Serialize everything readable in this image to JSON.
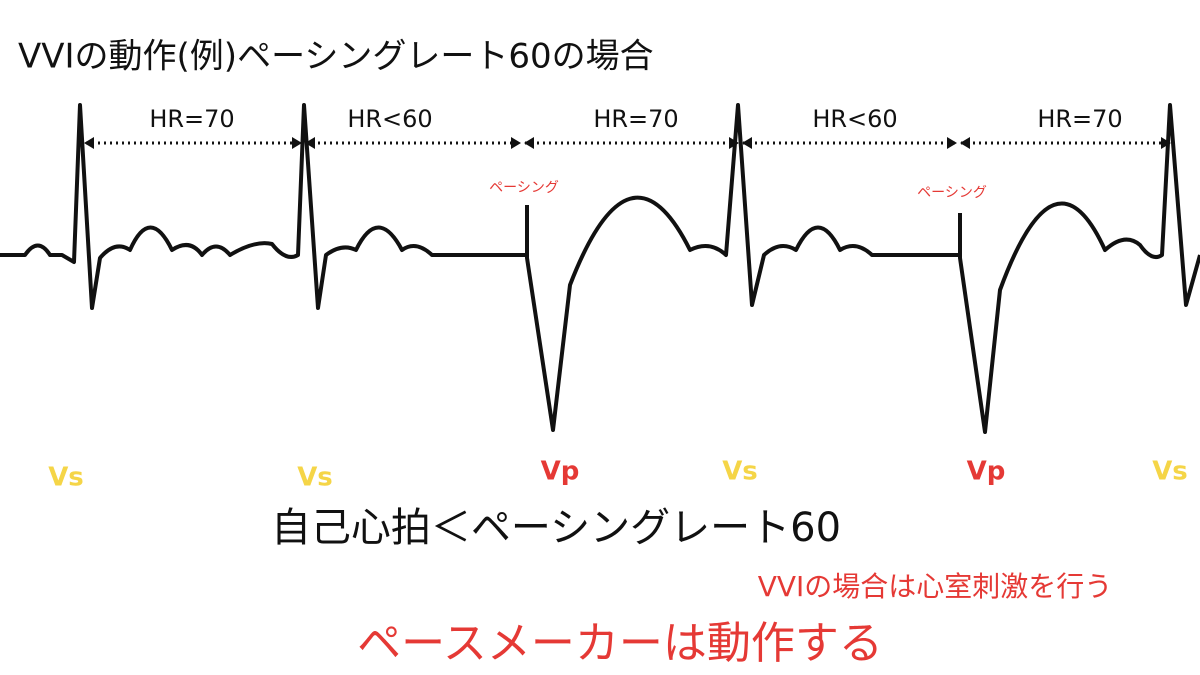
{
  "title": "VVIの動作(例)ペーシングレート60の場合",
  "intervals": [
    "HR=70",
    "HR<60",
    "HR=70",
    "HR<60",
    "HR=70"
  ],
  "pacing_labels": [
    "ペーシング",
    "ペーシング"
  ],
  "beats": [
    "Vs",
    "Vs",
    "Vp",
    "Vs",
    "Vp",
    "Vs"
  ],
  "condition": "自己心拍＜ペーシングレート60",
  "note": "VVIの場合は心室刺激を行う",
  "conclusion": "ペースメーカーは動作する"
}
